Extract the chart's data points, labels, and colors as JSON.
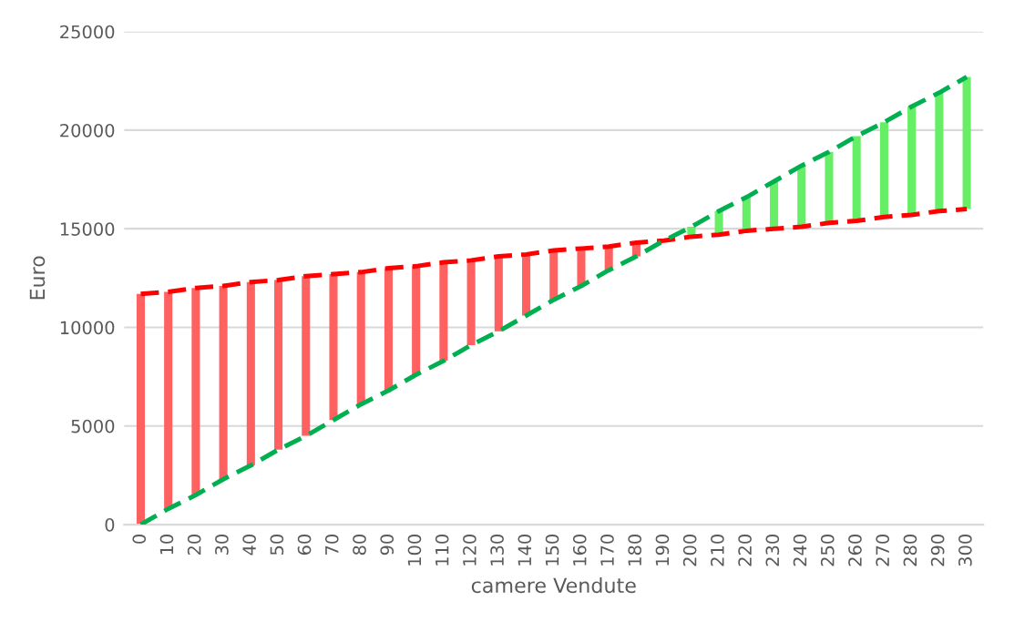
{
  "chart_data": {
    "type": "line",
    "xlabel": "camere Vendute",
    "ylabel": "Euro",
    "categories": [
      "0",
      "10",
      "20",
      "30",
      "40",
      "50",
      "60",
      "70",
      "80",
      "90",
      "100",
      "110",
      "120",
      "130",
      "140",
      "150",
      "160",
      "170",
      "180",
      "190",
      "200",
      "210",
      "220",
      "230",
      "240",
      "250",
      "260",
      "270",
      "280",
      "290",
      "300"
    ],
    "series": [
      {
        "type": "bar",
        "values": [
          11700,
          11000,
          10500,
          9800,
          9300,
          8600,
          8100,
          7400,
          6700,
          6200,
          5500,
          5000,
          4300,
          3800,
          3100,
          2500,
          1900,
          1200,
          700,
          null,
          500,
          1200,
          1700,
          2400,
          3100,
          3600,
          4300,
          4800,
          5500,
          6000,
          6700
        ],
        "base": [
          0,
          800,
          1500,
          2300,
          3000,
          3800,
          4500,
          5300,
          6100,
          6800,
          7600,
          8300,
          9100,
          9800,
          10600,
          11400,
          12100,
          12900,
          13600,
          null,
          14600,
          14700,
          14900,
          15000,
          15100,
          15300,
          15400,
          15600,
          15700,
          15900,
          16000
        ],
        "colors": [
          "#ff6060",
          "#ff6060",
          "#ff6060",
          "#ff6060",
          "#ff6060",
          "#ff6060",
          "#ff6060",
          "#ff6060",
          "#ff6060",
          "#ff6060",
          "#ff6060",
          "#ff6060",
          "#ff6060",
          "#ff6060",
          "#ff6060",
          "#ff6060",
          "#ff6060",
          "#ff6060",
          "#ff6060",
          "#ff6060",
          "#66ee66",
          "#66ee66",
          "#66ee66",
          "#66ee66",
          "#66ee66",
          "#66ee66",
          "#66ee66",
          "#66ee66",
          "#66ee66",
          "#66ee66",
          "#66ee66"
        ]
      },
      {
        "color": "#ff0000",
        "values": [
          11700,
          11800,
          12000,
          12100,
          12300,
          12400,
          12600,
          12700,
          12800,
          13000,
          13100,
          13300,
          13400,
          13600,
          13700,
          13900,
          14000,
          14100,
          14300,
          14400,
          14600,
          14700,
          14900,
          15000,
          15100,
          15300,
          15400,
          15600,
          15700,
          15900,
          16000
        ]
      },
      {
        "color": "#00b050",
        "values": [
          0,
          800,
          1500,
          2300,
          3000,
          3800,
          4500,
          5300,
          6100,
          6800,
          7600,
          8300,
          9100,
          9800,
          10600,
          11400,
          12100,
          12900,
          13600,
          14400,
          15100,
          15900,
          16600,
          17400,
          18200,
          18900,
          19700,
          20400,
          21200,
          21900,
          22700
        ]
      }
    ],
    "ylim": [
      0,
      25000
    ],
    "yticks": [
      0,
      5000,
      10000,
      15000,
      20000,
      25000
    ],
    "grid": "y",
    "line_style": "dashed",
    "marker": "none"
  }
}
